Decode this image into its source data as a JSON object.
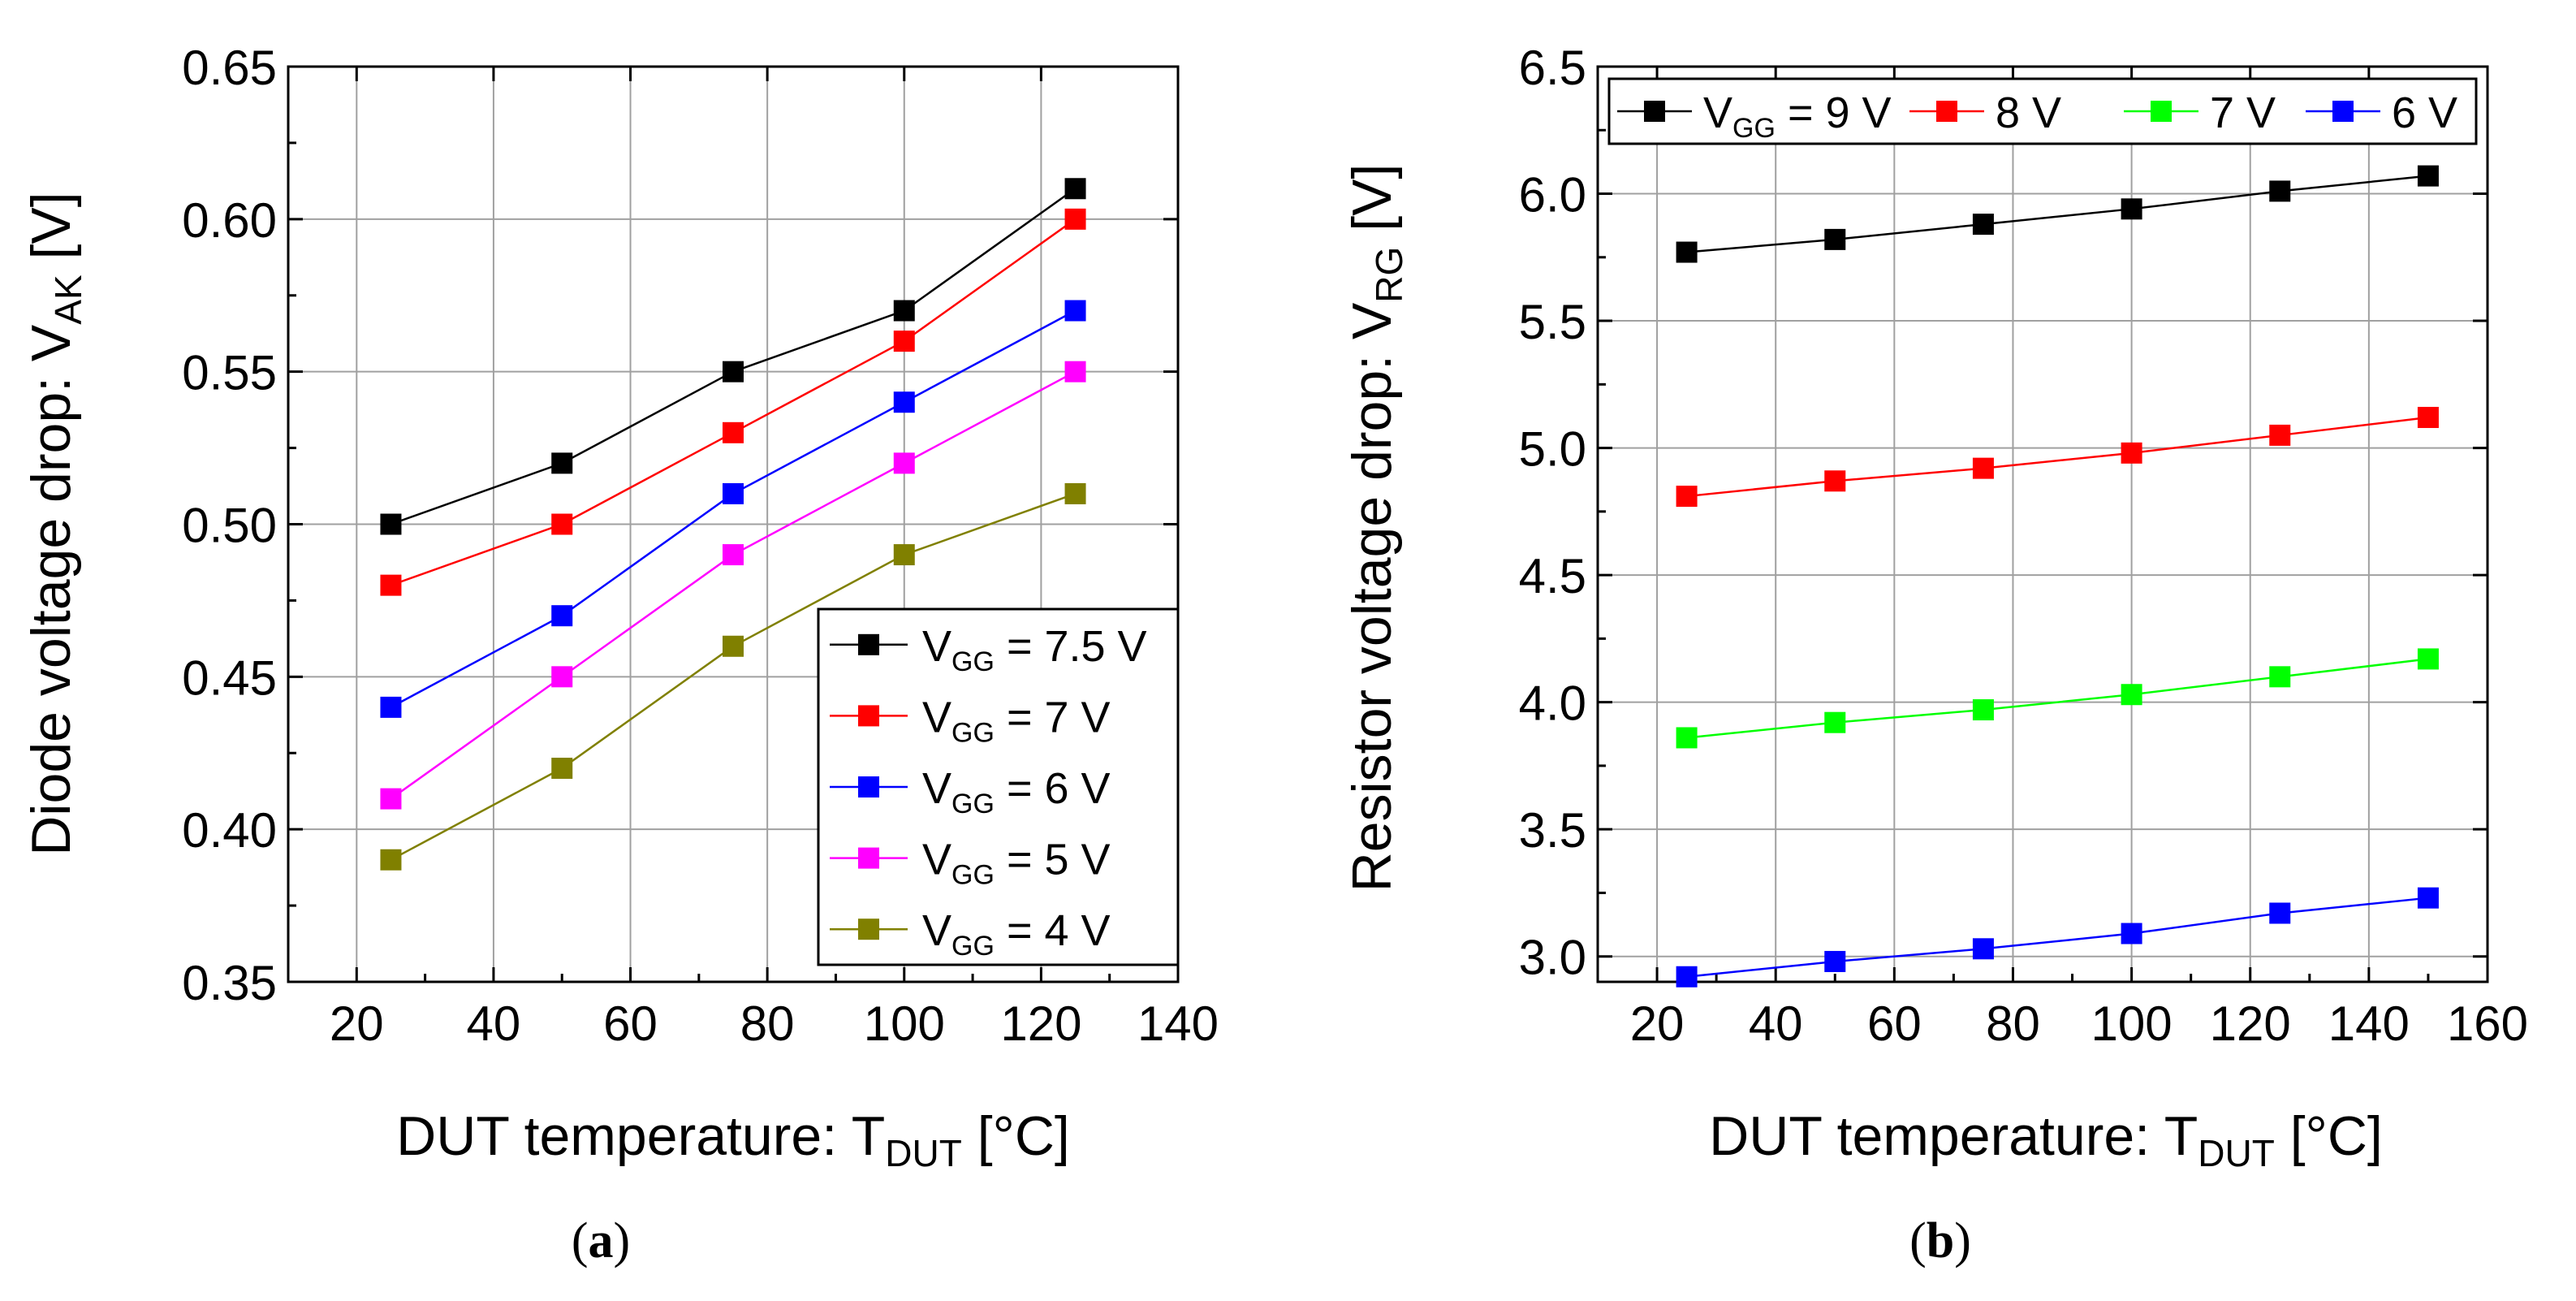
{
  "figure": {
    "panel_a_caption_letter": "a",
    "panel_b_caption_letter": "b"
  },
  "chart_data": [
    {
      "id": "a",
      "type": "line",
      "ylabel": "Diode voltage drop: V",
      "ylabel_sub": "AK",
      "ylabel_unit": " [V]",
      "xlabel": "DUT temperature: T",
      "xlabel_sub": "DUT",
      "xlabel_unit": " [°C]",
      "xlim": [
        10,
        140
      ],
      "ylim": [
        0.35,
        0.65
      ],
      "xticks": [
        20,
        40,
        60,
        80,
        100,
        120,
        140
      ],
      "xtick_labels": [
        "20",
        "40",
        "60",
        "80",
        "100",
        "120",
        "140"
      ],
      "yticks": [
        0.35,
        0.4,
        0.45,
        0.5,
        0.55,
        0.6,
        0.65
      ],
      "ytick_labels": [
        "0.35",
        "0.40",
        "0.45",
        "0.50",
        "0.55",
        "0.60",
        "0.65"
      ],
      "grid": true,
      "legend_position": "bottom-right",
      "legend_layout": "vertical",
      "x": [
        25,
        50,
        75,
        100,
        125
      ],
      "series": [
        {
          "name": "V",
          "sub": "GG",
          "suffix": " = 7.5 V",
          "color": "#000000",
          "values": [
            0.5,
            0.52,
            0.55,
            0.57,
            0.61
          ]
        },
        {
          "name": "V",
          "sub": "GG",
          "suffix": " = 7 V",
          "color": "#ff0000",
          "values": [
            0.48,
            0.5,
            0.53,
            0.56,
            0.6
          ]
        },
        {
          "name": "V",
          "sub": "GG",
          "suffix": " = 6 V",
          "color": "#0000ff",
          "values": [
            0.44,
            0.47,
            0.51,
            0.54,
            0.57
          ]
        },
        {
          "name": "V",
          "sub": "GG",
          "suffix": " = 5 V",
          "color": "#ff00ff",
          "values": [
            0.41,
            0.45,
            0.49,
            0.52,
            0.55
          ]
        },
        {
          "name": "V",
          "sub": "GG",
          "suffix": " = 4 V",
          "color": "#808000",
          "values": [
            0.39,
            0.42,
            0.46,
            0.49,
            0.51
          ]
        }
      ]
    },
    {
      "id": "b",
      "type": "line",
      "ylabel": "Resistor voltage drop: V",
      "ylabel_sub": "RG",
      "ylabel_unit": " [V]",
      "xlabel": "DUT temperature: T",
      "xlabel_sub": "DUT",
      "xlabel_unit": " [°C]",
      "xlim": [
        10,
        160
      ],
      "ylim": [
        2.9,
        6.5
      ],
      "xticks": [
        20,
        40,
        60,
        80,
        100,
        120,
        140,
        160
      ],
      "xtick_labels": [
        "20",
        "40",
        "60",
        "80",
        "100",
        "120",
        "140",
        "160"
      ],
      "yticks": [
        3.0,
        3.5,
        4.0,
        4.5,
        5.0,
        5.5,
        6.0,
        6.5
      ],
      "ytick_labels": [
        "3.0",
        "3.5",
        "4.0",
        "4.5",
        "5.0",
        "5.5",
        "6.0",
        "6.5"
      ],
      "grid": true,
      "legend_position": "top",
      "legend_layout": "horizontal",
      "x": [
        25,
        50,
        75,
        100,
        125,
        150
      ],
      "series": [
        {
          "name": "V",
          "sub": "GG",
          "suffix": " = 9 V",
          "color": "#000000",
          "values": [
            5.77,
            5.82,
            5.88,
            5.94,
            6.01,
            6.07
          ]
        },
        {
          "name": "8 V",
          "sub": "",
          "suffix": "",
          "color": "#ff0000",
          "values": [
            4.81,
            4.87,
            4.92,
            4.98,
            5.05,
            5.12
          ]
        },
        {
          "name": "7 V",
          "sub": "",
          "suffix": "",
          "color": "#00ff00",
          "values": [
            3.86,
            3.92,
            3.97,
            4.03,
            4.1,
            4.17
          ]
        },
        {
          "name": "6 V",
          "sub": "",
          "suffix": "",
          "color": "#0000ff",
          "values": [
            2.92,
            2.98,
            3.03,
            3.09,
            3.17,
            3.23
          ]
        }
      ]
    }
  ]
}
